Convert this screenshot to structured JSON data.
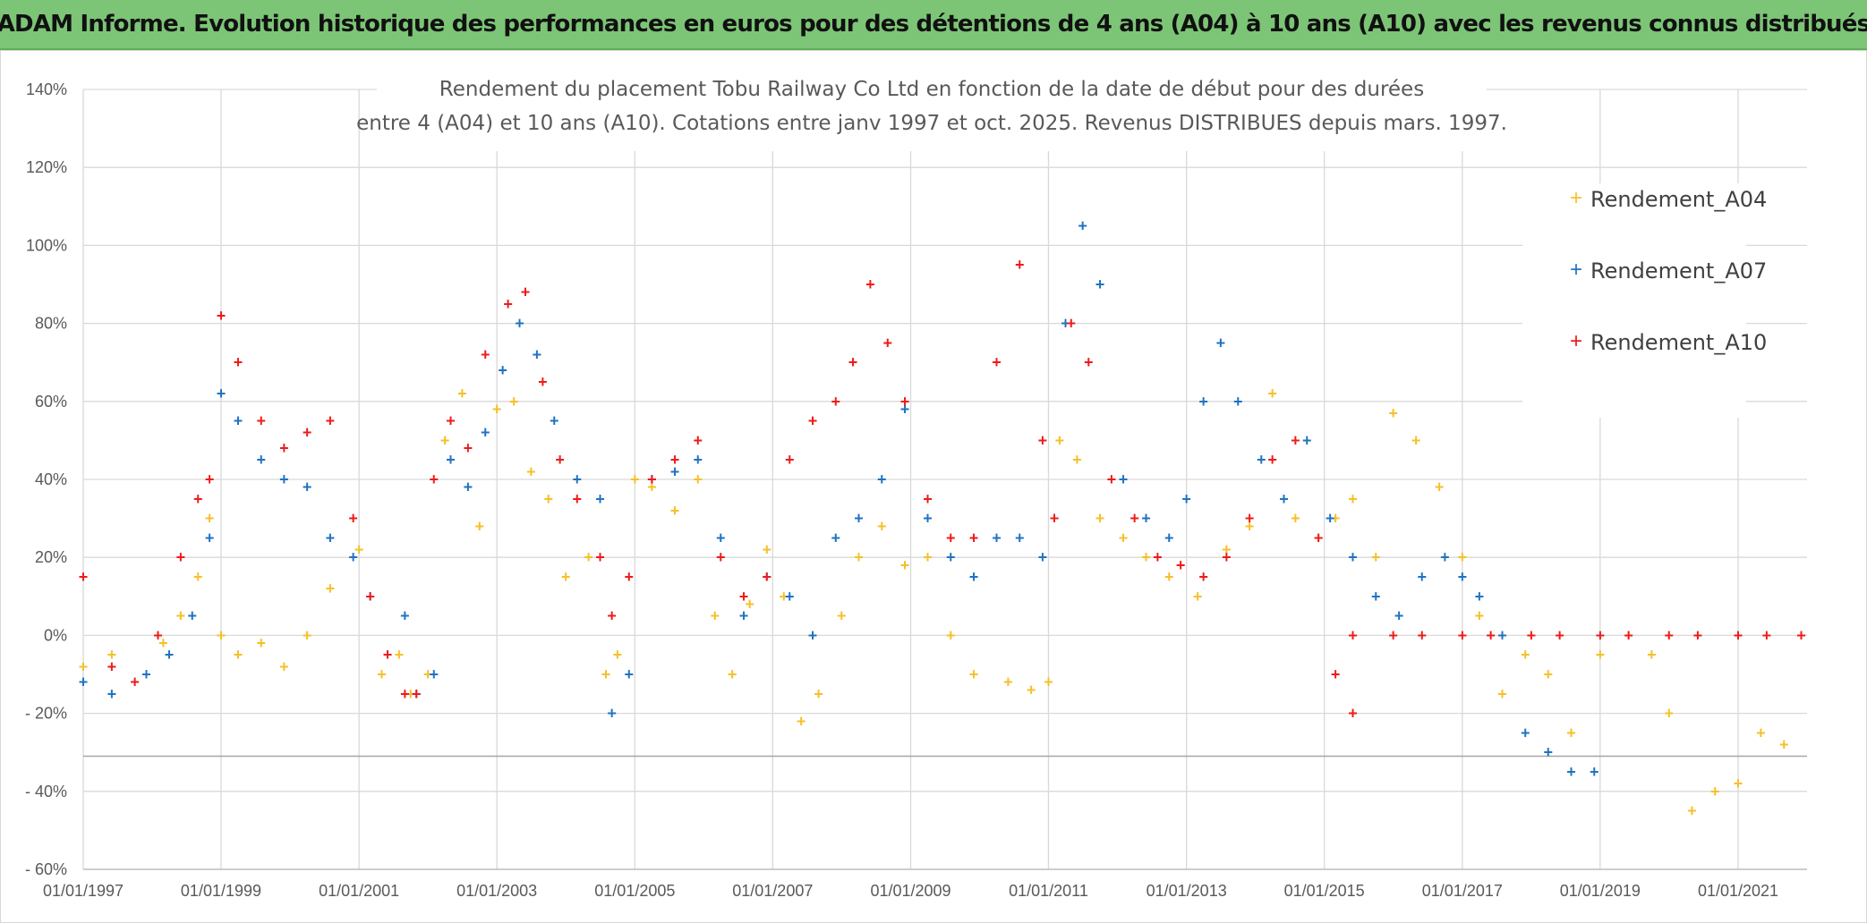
{
  "banner": {
    "title": "ADAM Informe. Evolution historique des performances en euros pour des détentions de 4 ans (A04) à 10 ans (A10) avec les revenus connus distribués"
  },
  "chart_data": {
    "type": "scatter",
    "title": [
      "Rendement du placement Tobu Railway Co Ltd en fonction de la date de début pour des durées",
      "entre 4 (A04) et 10 ans (A10). Cotations entre janv 1997 et oct. 2025. Revenus DISTRIBUES depuis mars. 1997."
    ],
    "xlabel": "",
    "ylabel": "",
    "x_ticks": [
      "01/01/1997",
      "01/01/1999",
      "01/01/2001",
      "01/01/2003",
      "01/01/2005",
      "01/01/2007",
      "01/01/2009",
      "01/01/2011",
      "01/01/2013",
      "01/01/2015",
      "01/01/2017",
      "01/01/2019",
      "01/01/2021"
    ],
    "xlim": [
      "1997-01-01",
      "2022-01-01"
    ],
    "y_ticks": [
      "140%",
      "120%",
      "100%",
      "80%",
      "60%",
      "40%",
      "20%",
      "0%",
      "- 20%",
      "- 40%",
      "- 60%"
    ],
    "ylim": [
      -60,
      140
    ],
    "grid": true,
    "legend_position": "right",
    "marker": "+",
    "series": [
      {
        "name": "Rendement_A04",
        "color": "#f5c02a",
        "x": [
          "1997-01-01",
          "1997-06-01",
          "1997-12-01",
          "1998-03-01",
          "1998-06-01",
          "1998-09-01",
          "1998-11-01",
          "1999-01-01",
          "1999-04-01",
          "1999-08-01",
          "1999-12-01",
          "2000-04-01",
          "2000-08-01",
          "2001-01-01",
          "2001-05-01",
          "2001-08-01",
          "2001-10-01",
          "2002-01-01",
          "2002-04-01",
          "2002-07-01",
          "2002-10-01",
          "2003-01-01",
          "2003-04-01",
          "2003-07-01",
          "2003-10-01",
          "2004-01-01",
          "2004-05-01",
          "2004-08-01",
          "2004-10-01",
          "2005-01-01",
          "2005-04-01",
          "2005-08-01",
          "2005-12-01",
          "2006-03-01",
          "2006-06-01",
          "2006-09-01",
          "2006-12-01",
          "2007-03-01",
          "2007-06-01",
          "2007-09-01",
          "2008-01-01",
          "2008-04-01",
          "2008-08-01",
          "2008-12-01",
          "2009-04-01",
          "2009-08-01",
          "2009-12-01",
          "2010-06-01",
          "2010-10-01",
          "2011-01-01",
          "2011-03-01",
          "2011-06-01",
          "2011-10-01",
          "2012-02-01",
          "2012-06-01",
          "2012-10-01",
          "2013-03-01",
          "2013-08-01",
          "2013-12-01",
          "2014-04-01",
          "2014-08-01",
          "2014-12-01",
          "2015-03-01",
          "2015-06-01",
          "2015-10-01",
          "2016-01-01",
          "2016-05-01",
          "2016-09-01",
          "2017-01-01",
          "2017-04-01",
          "2017-08-01",
          "2017-12-01",
          "2018-04-01",
          "2018-08-01",
          "2019-01-01",
          "2019-06-01",
          "2019-10-01",
          "2020-01-01",
          "2020-05-01",
          "2020-09-01",
          "2021-01-01",
          "2021-05-01",
          "2021-09-01"
        ],
        "values": [
          -8,
          -5,
          -10,
          -2,
          5,
          15,
          30,
          0,
          -5,
          -2,
          -8,
          0,
          12,
          22,
          -10,
          -5,
          -15,
          -10,
          50,
          62,
          28,
          58,
          60,
          42,
          35,
          15,
          20,
          -10,
          -5,
          40,
          38,
          32,
          40,
          5,
          -10,
          8,
          22,
          10,
          -22,
          -15,
          5,
          20,
          28,
          18,
          20,
          0,
          -10,
          -12,
          -14,
          -12,
          50,
          45,
          30,
          25,
          20,
          15,
          10,
          22,
          28,
          62,
          30,
          25,
          30,
          35,
          20,
          57,
          50,
          38,
          20,
          5,
          -15,
          -5,
          -10,
          -25,
          -5,
          0,
          -5,
          -20,
          -45,
          -40,
          -38,
          -25,
          -28
        ]
      },
      {
        "name": "Rendement_A07",
        "color": "#1f73c2",
        "x": [
          "1997-01-01",
          "1997-06-01",
          "1997-12-01",
          "1998-04-01",
          "1998-08-01",
          "1998-11-01",
          "1999-01-01",
          "1999-04-01",
          "1999-08-01",
          "1999-12-01",
          "2000-04-01",
          "2000-08-01",
          "2000-12-01",
          "2001-03-01",
          "2001-06-01",
          "2001-09-01",
          "2001-11-01",
          "2002-02-01",
          "2002-05-01",
          "2002-08-01",
          "2002-11-01",
          "2003-02-01",
          "2003-05-01",
          "2003-08-01",
          "2003-11-01",
          "2004-03-01",
          "2004-07-01",
          "2004-09-01",
          "2004-12-01",
          "2005-04-01",
          "2005-08-01",
          "2005-12-01",
          "2006-04-01",
          "2006-08-01",
          "2006-12-01",
          "2007-04-01",
          "2007-08-01",
          "2007-12-01",
          "2008-04-01",
          "2008-08-01",
          "2008-12-01",
          "2009-04-01",
          "2009-08-01",
          "2009-12-01",
          "2010-04-01",
          "2010-08-01",
          "2010-12-01",
          "2011-02-01",
          "2011-04-01",
          "2011-07-01",
          "2011-10-01",
          "2012-02-01",
          "2012-06-01",
          "2012-10-01",
          "2013-01-01",
          "2013-04-01",
          "2013-07-01",
          "2013-10-01",
          "2014-02-01",
          "2014-06-01",
          "2014-10-01",
          "2015-02-01",
          "2015-06-01",
          "2015-10-01",
          "2016-02-01",
          "2016-06-01",
          "2016-10-01",
          "2017-01-01",
          "2017-04-01",
          "2017-08-01",
          "2017-12-01",
          "2018-04-01",
          "2018-08-01",
          "2018-12-01"
        ],
        "values": [
          -12,
          -15,
          -10,
          -5,
          5,
          25,
          62,
          55,
          45,
          40,
          38,
          25,
          20,
          10,
          -5,
          5,
          -15,
          -10,
          45,
          38,
          52,
          68,
          80,
          72,
          55,
          40,
          35,
          -20,
          -10,
          40,
          42,
          45,
          25,
          5,
          15,
          10,
          0,
          25,
          30,
          40,
          58,
          30,
          20,
          15,
          25,
          25,
          20,
          30,
          80,
          105,
          90,
          40,
          30,
          25,
          35,
          60,
          75,
          60,
          45,
          35,
          50,
          30,
          20,
          10,
          5,
          15,
          20,
          15,
          10,
          0,
          -25,
          -30,
          -35,
          -35
        ]
      },
      {
        "name": "Rendement_A10",
        "color": "#ee1b1b",
        "x": [
          "1997-01-01",
          "1997-06-01",
          "1997-10-01",
          "1998-02-01",
          "1998-06-01",
          "1998-09-01",
          "1998-11-01",
          "1999-01-01",
          "1999-04-01",
          "1999-08-01",
          "1999-12-01",
          "2000-04-01",
          "2000-08-01",
          "2000-12-01",
          "2001-03-01",
          "2001-06-01",
          "2001-09-01",
          "2001-11-01",
          "2002-02-01",
          "2002-05-01",
          "2002-08-01",
          "2002-11-01",
          "2003-03-01",
          "2003-06-01",
          "2003-09-01",
          "2003-12-01",
          "2004-03-01",
          "2004-07-01",
          "2004-09-01",
          "2004-12-01",
          "2005-04-01",
          "2005-08-01",
          "2005-12-01",
          "2006-04-01",
          "2006-08-01",
          "2006-12-01",
          "2007-04-01",
          "2007-08-01",
          "2007-12-01",
          "2008-03-01",
          "2008-06-01",
          "2008-09-01",
          "2008-12-01",
          "2009-04-01",
          "2009-08-01",
          "2009-12-01",
          "2010-04-01",
          "2010-08-01",
          "2010-12-01",
          "2011-02-01",
          "2011-05-01",
          "2011-08-01",
          "2011-12-01",
          "2012-04-01",
          "2012-08-01",
          "2012-12-01",
          "2013-04-01",
          "2013-08-01",
          "2013-12-01",
          "2014-04-01",
          "2014-08-01",
          "2014-12-01",
          "2015-03-01",
          "2015-06-01"
        ],
        "values": [
          15,
          -8,
          -12,
          0,
          20,
          35,
          40,
          82,
          70,
          55,
          48,
          52,
          55,
          30,
          10,
          -5,
          -15,
          -15,
          40,
          55,
          48,
          72,
          85,
          88,
          65,
          45,
          35,
          20,
          5,
          15,
          40,
          45,
          50,
          20,
          10,
          15,
          45,
          55,
          60,
          70,
          90,
          75,
          60,
          35,
          25,
          25,
          70,
          95,
          50,
          30,
          80,
          70,
          40,
          30,
          20,
          18,
          15,
          20,
          30,
          45,
          50,
          25,
          -10,
          -20
        ]
      },
      {
        "name": "",
        "color": "#ee1b1b",
        "x": [
          "2015-06-01",
          "2016-01-01",
          "2016-06-01",
          "2017-01-01",
          "2017-06-01",
          "2018-01-01",
          "2018-06-01",
          "2019-01-01",
          "2019-06-01",
          "2020-01-01",
          "2020-06-01",
          "2021-01-01",
          "2021-06-01",
          "2021-12-01"
        ],
        "values": [
          0,
          0,
          0,
          0,
          0,
          0,
          0,
          0,
          0,
          0,
          0,
          0,
          0,
          0
        ]
      }
    ]
  }
}
